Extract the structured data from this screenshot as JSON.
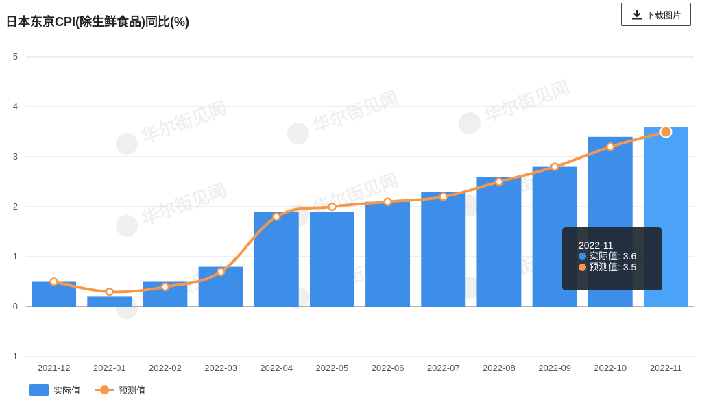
{
  "header": {
    "title": "日本东京CPI(除生鲜食品)同比(%)",
    "download_label": "下载图片"
  },
  "watermark": "华尔街见闻",
  "tooltip": {
    "category": "2022-11",
    "actual_text": "实际值: 3.6",
    "forecast_text": "预测值: 3.5"
  },
  "colors": {
    "actual": "#3d8ee8",
    "actual_highlight": "#4ba3f7",
    "forecast": "#f7974a",
    "grid": "#dddddd",
    "axis": "#666666"
  },
  "chart_data": {
    "type": "bar",
    "title": "日本东京CPI(除生鲜食品)同比(%)",
    "categories": [
      "2021-12",
      "2022-01",
      "2022-02",
      "2022-03",
      "2022-04",
      "2022-05",
      "2022-06",
      "2022-07",
      "2022-08",
      "2022-09",
      "2022-10",
      "2022-11"
    ],
    "series": [
      {
        "name": "实际值",
        "type": "bar",
        "values": [
          0.5,
          0.2,
          0.5,
          0.8,
          1.9,
          1.9,
          2.1,
          2.3,
          2.6,
          2.8,
          3.4,
          3.6
        ]
      },
      {
        "name": "预测值",
        "type": "line",
        "values": [
          0.5,
          0.3,
          0.4,
          0.7,
          1.8,
          2.0,
          2.1,
          2.2,
          2.5,
          2.8,
          3.2,
          3.5
        ]
      }
    ],
    "ylim": [
      -1,
      5
    ],
    "yticks": [
      "-1",
      "0",
      "1",
      "2",
      "3",
      "4",
      "5"
    ],
    "highlight_index": 11,
    "grid": true,
    "legend_position": "bottom-left"
  }
}
